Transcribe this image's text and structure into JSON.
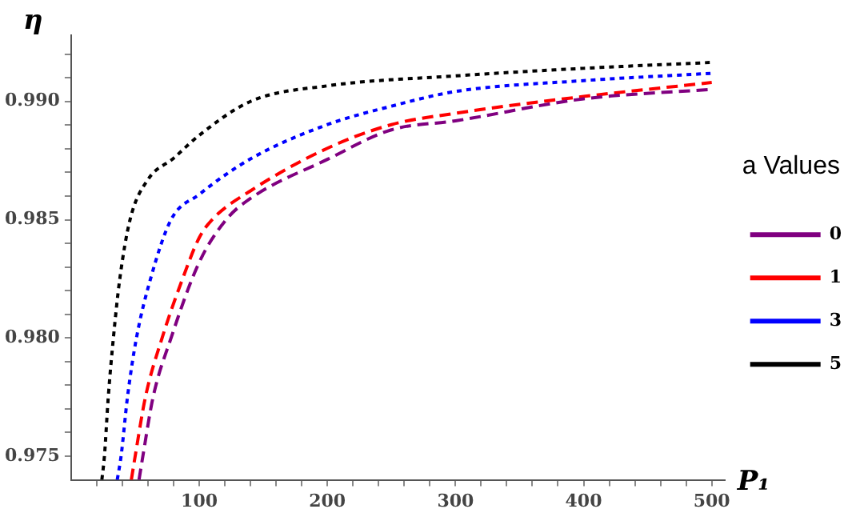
{
  "chart_data": {
    "type": "line",
    "xlabel": "P₁",
    "ylabel": "η",
    "legend_title": "a Values",
    "legend": "right",
    "grid": false,
    "marker": "none",
    "xlim": [
      0,
      510
    ],
    "ylim": [
      0.974,
      0.9928
    ],
    "xticks": [
      {
        "value": 20,
        "label": null
      },
      {
        "value": 40,
        "label": null
      },
      {
        "value": 60,
        "label": null
      },
      {
        "value": 80,
        "label": null
      },
      100,
      {
        "value": 120,
        "label": null
      },
      {
        "value": 140,
        "label": null
      },
      {
        "value": 160,
        "label": null
      },
      {
        "value": 180,
        "label": null
      },
      200,
      {
        "value": 220,
        "label": null
      },
      {
        "value": 240,
        "label": null
      },
      {
        "value": 260,
        "label": null
      },
      {
        "value": 280,
        "label": null
      },
      300,
      {
        "value": 320,
        "label": null
      },
      {
        "value": 340,
        "label": null
      },
      {
        "value": 360,
        "label": null
      },
      {
        "value": 380,
        "label": null
      },
      400,
      {
        "value": 420,
        "label": null
      },
      {
        "value": 440,
        "label": null
      },
      {
        "value": 460,
        "label": null
      },
      {
        "value": 480,
        "label": null
      },
      500
    ],
    "yticks": [
      {
        "value": 0.975,
        "label": "0.975"
      },
      {
        "value": 0.976,
        "label": null
      },
      {
        "value": 0.977,
        "label": null
      },
      {
        "value": 0.978,
        "label": null
      },
      {
        "value": 0.979,
        "label": null
      },
      {
        "value": 0.98,
        "label": "0.980"
      },
      {
        "value": 0.981,
        "label": null
      },
      {
        "value": 0.982,
        "label": null
      },
      {
        "value": 0.983,
        "label": null
      },
      {
        "value": 0.984,
        "label": null
      },
      {
        "value": 0.985,
        "label": "0.985"
      },
      {
        "value": 0.986,
        "label": null
      },
      {
        "value": 0.987,
        "label": null
      },
      {
        "value": 0.988,
        "label": null
      },
      {
        "value": 0.989,
        "label": null
      },
      {
        "value": 0.99,
        "label": "0.990"
      },
      {
        "value": 0.991,
        "label": null
      },
      {
        "value": 0.992,
        "label": null
      }
    ],
    "series": [
      {
        "name": "0",
        "color": "#800080",
        "line_style": "dashed",
        "x": [
          53,
          56,
          64,
          78,
          100,
          121,
          140,
          200,
          250,
          300,
          400,
          500
        ],
        "values": [
          0.974,
          0.975,
          0.9775,
          0.98,
          0.9832,
          0.985,
          0.9859,
          0.98755,
          0.9888,
          0.98918,
          0.99011,
          0.99051
        ]
      },
      {
        "name": "1",
        "color": "#ff0000",
        "line_style": "dashed",
        "x": [
          47,
          50,
          58,
          71,
          87,
          100,
          110,
          140,
          200,
          250,
          300,
          400,
          500
        ],
        "values": [
          0.974,
          0.975,
          0.9775,
          0.98,
          0.9825,
          0.98424,
          0.985,
          0.98622,
          0.98802,
          0.98902,
          0.9895,
          0.99021,
          0.9908
        ]
      },
      {
        "name": "3",
        "color": "#0000ff",
        "line_style": "dotted",
        "x": [
          36,
          39,
          44,
          51,
          62,
          78,
          100,
          140,
          200,
          250,
          300,
          400,
          500
        ],
        "values": [
          0.974,
          0.975,
          0.9775,
          0.98,
          0.9825,
          0.985,
          0.98607,
          0.98757,
          0.98902,
          0.9898,
          0.99042,
          0.99088,
          0.99119
        ]
      },
      {
        "name": "5",
        "color": "#000000",
        "line_style": "dotted",
        "x": [
          24,
          26,
          29,
          33,
          38,
          46,
          60,
          80,
          100,
          140,
          200,
          300,
          400,
          500
        ],
        "values": [
          0.974,
          0.975,
          0.9775,
          0.98,
          0.9825,
          0.985,
          0.9867,
          0.9876,
          0.98857,
          0.99,
          0.99066,
          0.99108,
          0.9914,
          0.99165
        ]
      }
    ]
  }
}
